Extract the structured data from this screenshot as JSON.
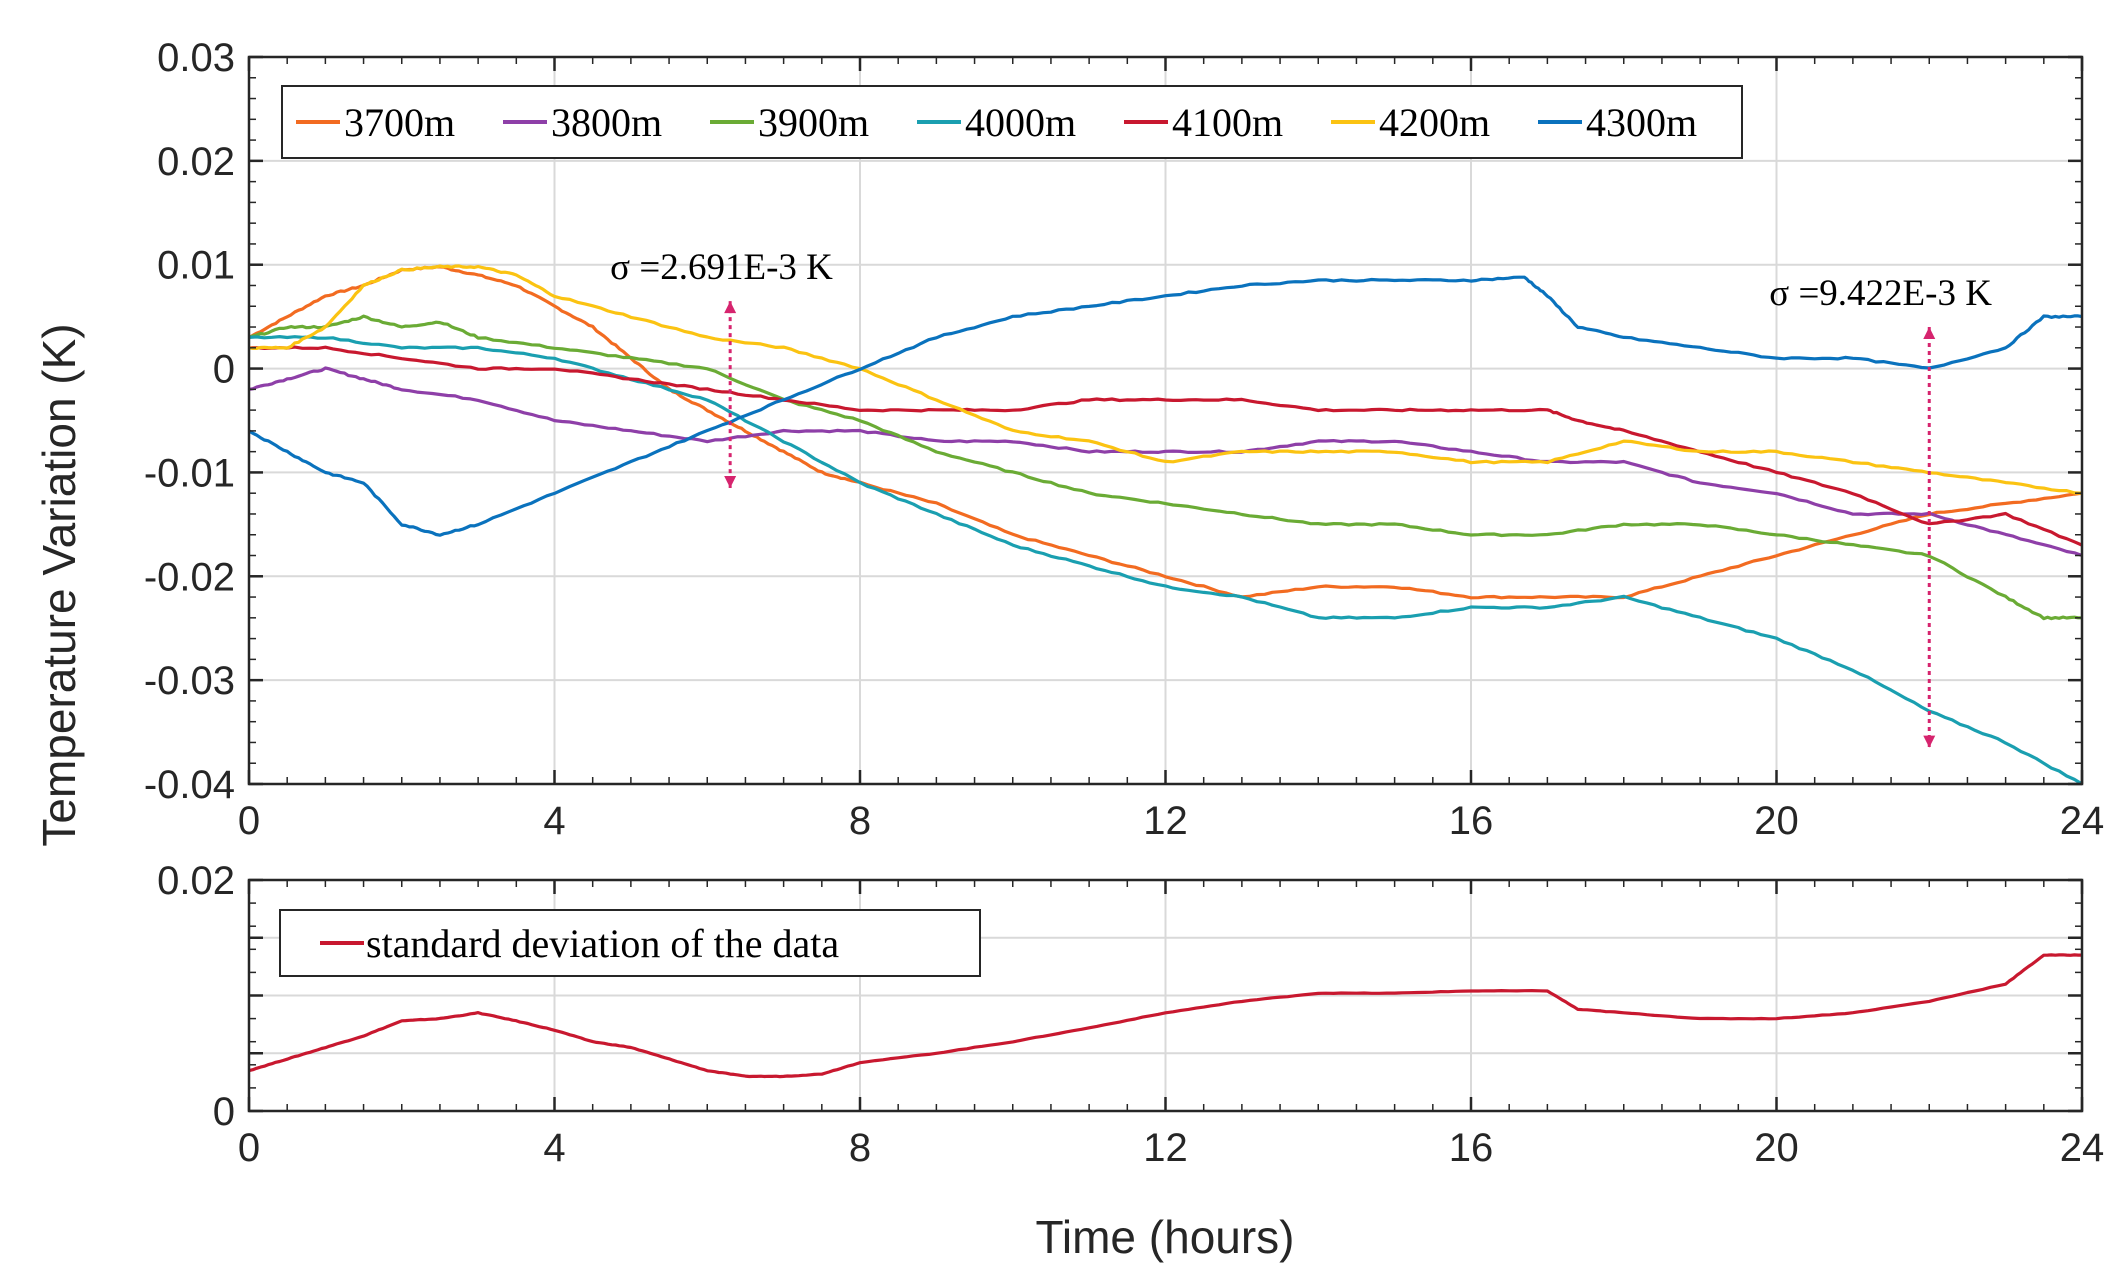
{
  "chart_data": [
    {
      "type": "line",
      "ylabel": "Temperature Variation (K)",
      "xlabel": "",
      "xlim": [
        0,
        24
      ],
      "ylim": [
        -0.04,
        0.03
      ],
      "xticks": [
        "0",
        "4",
        "8",
        "12",
        "16",
        "20",
        "24"
      ],
      "yticks": [
        "-0.04",
        "-0.03",
        "-0.02",
        "-0.01",
        "0",
        "0.01",
        "0.02",
        "0.03"
      ],
      "grid": true,
      "legend_position": "top",
      "series": [
        {
          "name": "3700m",
          "color": "#f26b21",
          "x": [
            0,
            0.5,
            1,
            1.5,
            2,
            2.5,
            3,
            3.5,
            4,
            4.5,
            5,
            5.5,
            6,
            6.5,
            7,
            7.5,
            8,
            9,
            10,
            11,
            12,
            13,
            14,
            15,
            16,
            17,
            18,
            19,
            20,
            21,
            22,
            23,
            24
          ],
          "y": [
            0.003,
            0.005,
            0.007,
            0.008,
            0.0095,
            0.0098,
            0.009,
            0.008,
            0.006,
            0.004,
            0.001,
            -0.002,
            -0.004,
            -0.006,
            -0.008,
            -0.01,
            -0.011,
            -0.013,
            -0.016,
            -0.018,
            -0.02,
            -0.022,
            -0.021,
            -0.021,
            -0.022,
            -0.022,
            -0.022,
            -0.02,
            -0.018,
            -0.016,
            -0.014,
            -0.013,
            -0.012
          ]
        },
        {
          "name": "3800m",
          "color": "#8e3fa8",
          "x": [
            0,
            0.5,
            1,
            1.5,
            2,
            3,
            4,
            5,
            6,
            7,
            8,
            9,
            10,
            11,
            12,
            13,
            14,
            15,
            16,
            17,
            18,
            19,
            20,
            21,
            22,
            23,
            24
          ],
          "y": [
            -0.002,
            -0.001,
            0.0,
            -0.001,
            -0.002,
            -0.003,
            -0.005,
            -0.006,
            -0.007,
            -0.006,
            -0.006,
            -0.007,
            -0.007,
            -0.008,
            -0.008,
            -0.008,
            -0.007,
            -0.007,
            -0.008,
            -0.009,
            -0.009,
            -0.011,
            -0.012,
            -0.014,
            -0.014,
            -0.016,
            -0.018
          ]
        },
        {
          "name": "3900m",
          "color": "#6aab35",
          "x": [
            0,
            0.5,
            1,
            1.5,
            2,
            2.5,
            3,
            4,
            5,
            6,
            7,
            8,
            9,
            10,
            11,
            12,
            13,
            14,
            15,
            16,
            17,
            18,
            19,
            20,
            21,
            22,
            23,
            23.5,
            24
          ],
          "y": [
            0.003,
            0.004,
            0.004,
            0.005,
            0.004,
            0.0045,
            0.003,
            0.002,
            0.001,
            0.0,
            -0.003,
            -0.005,
            -0.008,
            -0.01,
            -0.012,
            -0.013,
            -0.014,
            -0.015,
            -0.015,
            -0.016,
            -0.016,
            -0.015,
            -0.015,
            -0.016,
            -0.017,
            -0.018,
            -0.022,
            -0.024,
            -0.024
          ]
        },
        {
          "name": "4000m",
          "color": "#1a9fb0",
          "x": [
            0,
            1,
            2,
            3,
            4,
            5,
            6,
            7,
            8,
            9,
            10,
            11,
            12,
            13,
            14,
            15,
            16,
            17,
            18,
            19,
            20,
            21,
            22,
            23,
            24
          ],
          "y": [
            0.003,
            0.003,
            0.002,
            0.002,
            0.001,
            -0.001,
            -0.003,
            -0.007,
            -0.011,
            -0.014,
            -0.017,
            -0.019,
            -0.021,
            -0.022,
            -0.024,
            -0.024,
            -0.023,
            -0.023,
            -0.022,
            -0.024,
            -0.026,
            -0.029,
            -0.033,
            -0.036,
            -0.04
          ]
        },
        {
          "name": "4100m",
          "color": "#c8182f",
          "x": [
            0,
            1,
            2,
            3,
            4,
            5,
            6,
            7,
            8,
            9,
            10,
            11,
            12,
            13,
            14,
            15,
            16,
            17,
            17.4,
            18,
            19,
            20,
            21,
            22,
            23,
            24
          ],
          "y": [
            0.002,
            0.002,
            0.001,
            0.0,
            0.0,
            -0.001,
            -0.002,
            -0.003,
            -0.004,
            -0.004,
            -0.004,
            -0.003,
            -0.003,
            -0.003,
            -0.004,
            -0.004,
            -0.004,
            -0.004,
            -0.005,
            -0.006,
            -0.008,
            -0.01,
            -0.012,
            -0.015,
            -0.014,
            -0.017
          ]
        },
        {
          "name": "4200m",
          "color": "#fbc312",
          "x": [
            0,
            0.5,
            1,
            1.5,
            2,
            2.5,
            3,
            3.5,
            4,
            5,
            6,
            7,
            8,
            9,
            10,
            11,
            12,
            13,
            14,
            15,
            16,
            17,
            18,
            19,
            20,
            21,
            22,
            23,
            24
          ],
          "y": [
            0.002,
            0.002,
            0.004,
            0.008,
            0.0095,
            0.0098,
            0.0098,
            0.009,
            0.007,
            0.005,
            0.003,
            0.002,
            0.0,
            -0.003,
            -0.006,
            -0.007,
            -0.009,
            -0.008,
            -0.008,
            -0.008,
            -0.009,
            -0.009,
            -0.007,
            -0.008,
            -0.008,
            -0.009,
            -0.01,
            -0.011,
            -0.012
          ]
        },
        {
          "name": "4300m",
          "color": "#0a72bd",
          "x": [
            0,
            0.5,
            1,
            1.5,
            2,
            2.5,
            3,
            4,
            5,
            6,
            7,
            8,
            9,
            10,
            11,
            12,
            13,
            14,
            15,
            16,
            16.7,
            17,
            17.4,
            18,
            19,
            20,
            21,
            22,
            23,
            23.5,
            24
          ],
          "y": [
            -0.006,
            -0.008,
            -0.01,
            -0.011,
            -0.015,
            -0.016,
            -0.015,
            -0.012,
            -0.009,
            -0.006,
            -0.003,
            0.0,
            0.003,
            0.005,
            0.006,
            0.007,
            0.008,
            0.0085,
            0.0085,
            0.0085,
            0.0088,
            0.007,
            0.004,
            0.003,
            0.002,
            0.001,
            0.001,
            0.0,
            0.002,
            0.005,
            0.005
          ]
        }
      ],
      "annotations": [
        {
          "text": "σ =2.691E-3 K",
          "x": 6.3,
          "y_range": [
            -0.0115,
            0.0065
          ]
        },
        {
          "text": "σ =9.422E-3 K",
          "x": 22,
          "y_range": [
            -0.0365,
            0.004
          ]
        }
      ]
    },
    {
      "type": "line",
      "xlabel": "Time (hours)",
      "ylabel": "Temperature Variation (K)",
      "xlim": [
        0,
        24
      ],
      "ylim": [
        0,
        0.02
      ],
      "xticks": [
        "0",
        "4",
        "8",
        "12",
        "16",
        "20",
        "24"
      ],
      "yticks": [
        "0",
        "0.02"
      ],
      "grid": true,
      "legend_position": "top-left",
      "series": [
        {
          "name": "standard deviation of the data",
          "color": "#c8182f",
          "x": [
            0,
            0.5,
            1,
            1.5,
            2,
            2.5,
            3,
            3.5,
            4,
            4.5,
            5,
            5.5,
            6,
            6.5,
            7,
            7.5,
            8,
            9,
            10,
            11,
            12,
            13,
            14,
            15,
            16,
            17,
            17.4,
            18,
            19,
            20,
            21,
            22,
            23,
            23.5,
            24
          ],
          "y": [
            0.0035,
            0.0045,
            0.0055,
            0.0065,
            0.0078,
            0.008,
            0.0085,
            0.0078,
            0.007,
            0.006,
            0.0055,
            0.0045,
            0.0035,
            0.003,
            0.003,
            0.0032,
            0.0042,
            0.005,
            0.006,
            0.0072,
            0.0085,
            0.0095,
            0.0102,
            0.0102,
            0.0104,
            0.0104,
            0.0088,
            0.0085,
            0.008,
            0.008,
            0.0085,
            0.0095,
            0.011,
            0.0135,
            0.0135
          ]
        }
      ]
    }
  ]
}
